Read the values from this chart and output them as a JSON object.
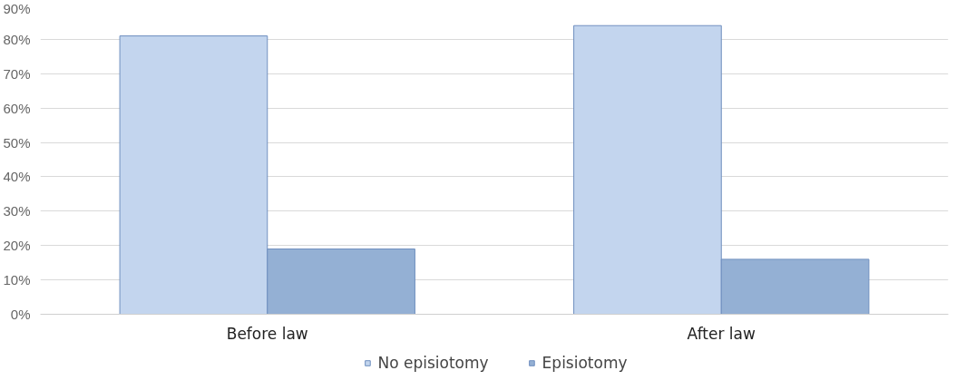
{
  "chart_data": {
    "type": "bar",
    "categories": [
      "Before law",
      "After law"
    ],
    "series": [
      {
        "name": "No episiotomy",
        "color": "#c3d5ee",
        "values": [
          81,
          84
        ]
      },
      {
        "name": "Episiotomy",
        "color": "#94b0d4",
        "values": [
          19,
          16
        ]
      }
    ],
    "ylim": [
      0,
      90
    ],
    "yticks": [
      {
        "value": 0,
        "label": "0%"
      },
      {
        "value": 10,
        "label": "10%"
      },
      {
        "value": 20,
        "label": "20%"
      },
      {
        "value": 30,
        "label": "30%"
      },
      {
        "value": 40,
        "label": "40%"
      },
      {
        "value": 50,
        "label": "50%"
      },
      {
        "value": 60,
        "label": "60%"
      },
      {
        "value": 70,
        "label": "70%"
      },
      {
        "value": 80,
        "label": "80%"
      },
      {
        "value": 90,
        "label": "90%"
      }
    ],
    "grid": "y",
    "legend": "bottom"
  }
}
